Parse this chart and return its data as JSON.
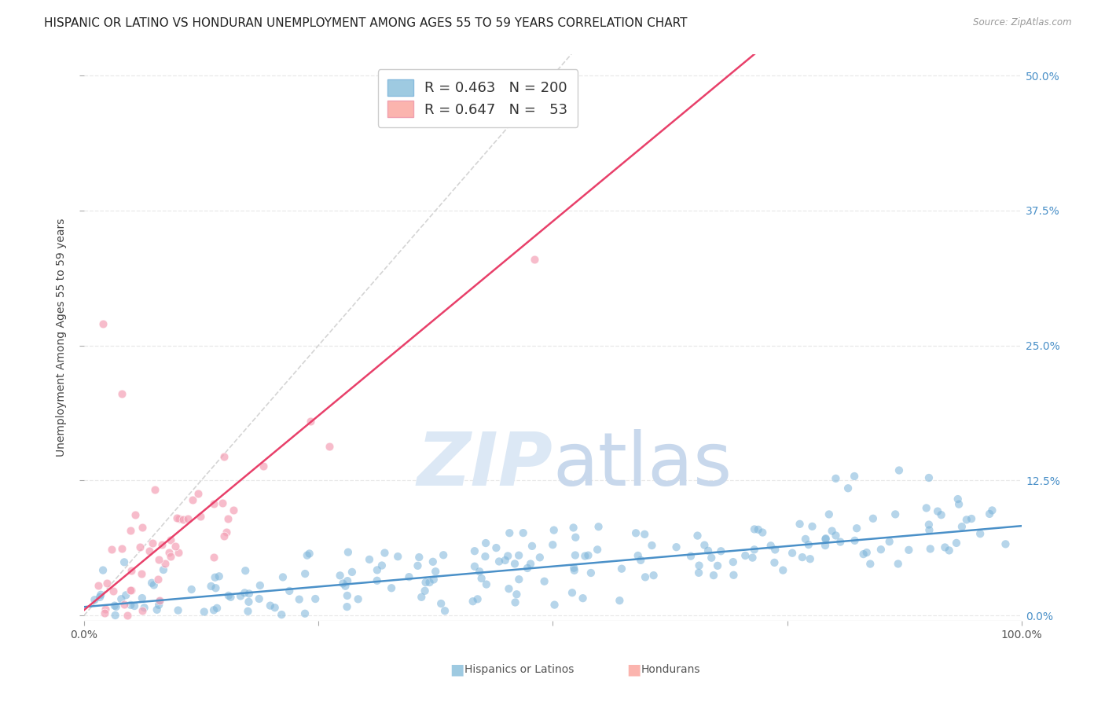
{
  "title": "HISPANIC OR LATINO VS HONDURAN UNEMPLOYMENT AMONG AGES 55 TO 59 YEARS CORRELATION CHART",
  "source": "Source: ZipAtlas.com",
  "ylabel_label": "Unemployment Among Ages 55 to 59 years",
  "ytick_labels": [
    "0.0%",
    "12.5%",
    "25.0%",
    "37.5%",
    "50.0%"
  ],
  "ytick_values": [
    0.0,
    0.125,
    0.25,
    0.375,
    0.5
  ],
  "xlim": [
    0.0,
    1.0
  ],
  "ylim": [
    -0.005,
    0.52
  ],
  "blue_scatter_color": "#7ab3d9",
  "pink_scatter_color": "#f4a0b5",
  "blue_line_color": "#4a90c8",
  "pink_line_color": "#e8406a",
  "diag_line_color": "#d0d0d0",
  "grid_color": "#e8e8e8",
  "background_color": "#ffffff",
  "watermark_zip": "ZIP",
  "watermark_atlas": "atlas",
  "watermark_color": "#dce8f5",
  "R_blue": 0.463,
  "N_blue": 200,
  "R_pink": 0.647,
  "N_pink": 53,
  "blue_slope": 0.075,
  "blue_intercept": 0.008,
  "pink_slope": 0.72,
  "pink_intercept": 0.005,
  "title_fontsize": 11,
  "axis_label_fontsize": 10,
  "tick_fontsize": 10,
  "legend_fontsize": 13,
  "right_tick_color": "#4a90c8",
  "legend_border_color": "#cccccc",
  "legend_box_blue": "#9ecae1",
  "legend_box_pink": "#fbb4ae",
  "bottom_label_blue": "Hispanics or Latinos",
  "bottom_label_pink": "Hondurans"
}
